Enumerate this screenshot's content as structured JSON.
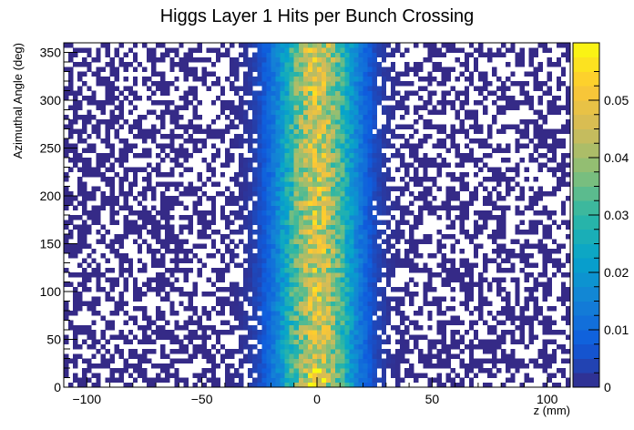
{
  "chart_data": {
    "type": "heatmap",
    "title": "Higgs Layer 1 Hits per Bunch Crossing",
    "xlabel": "z (mm)",
    "ylabel": "Azimuthal Angle (deg)",
    "xlim": [
      -110,
      110
    ],
    "ylim": [
      0,
      360
    ],
    "x_bins": 110,
    "y_bins": 72,
    "zlim": [
      0,
      0.06
    ],
    "x_ticks": [
      -100,
      -50,
      0,
      50,
      100
    ],
    "y_ticks": [
      0,
      50,
      100,
      150,
      200,
      250,
      300,
      350
    ],
    "z_ticks": [
      0,
      0.01,
      0.02,
      0.03,
      0.04,
      0.05
    ],
    "x_tick_labels": [
      "−100",
      "−50",
      "0",
      "50",
      "100"
    ],
    "y_tick_labels": [
      "0",
      "50",
      "100",
      "150",
      "200",
      "250",
      "300",
      "350"
    ],
    "z_tick_labels": [
      "0",
      "0.01",
      "0.02",
      "0.03",
      "0.04",
      "0.05"
    ],
    "distribution": {
      "shape": "gaussian in z, uniform in azimuthal angle",
      "z_center": 0,
      "z_sigma": 12,
      "peak_value": 0.045,
      "sparse_empty_fraction_in_tails": 0.5
    },
    "palette": [
      "#352a87",
      "#0f5cdd",
      "#1481d6",
      "#06a4ca",
      "#2eb7a4",
      "#87bf77",
      "#d1bb59",
      "#fec832",
      "#f9fb0e"
    ]
  }
}
